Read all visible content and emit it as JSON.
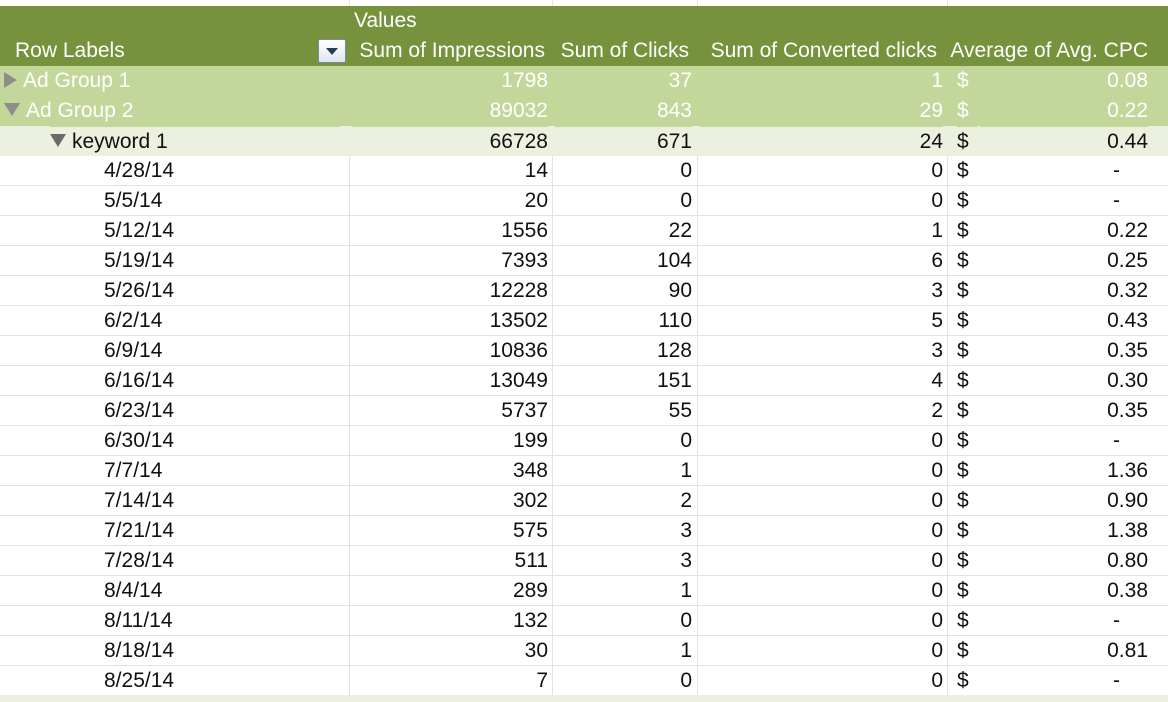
{
  "header": {
    "values_label": "Values",
    "row_labels": "Row Labels",
    "columns": [
      "Sum of Impressions",
      "Sum of Clicks",
      "Sum of Converted clicks",
      "Average of Avg. CPC"
    ]
  },
  "colors": {
    "header": "#76923c",
    "ad_group": "#c4d79b",
    "keyword": "#ebf1de"
  },
  "rows": [
    {
      "type": "group",
      "expand": "collapsed",
      "label": "Ad Group 1",
      "impr": "1798",
      "clicks": "37",
      "conv": "1",
      "cur": "$",
      "cpc": "0.08"
    },
    {
      "type": "group",
      "expand": "expanded",
      "label": "Ad Group 2",
      "impr": "89032",
      "clicks": "843",
      "conv": "29",
      "cur": "$",
      "cpc": "0.22"
    },
    {
      "type": "keyword",
      "expand": "expanded",
      "label": "keyword 1",
      "impr": "66728",
      "clicks": "671",
      "conv": "24",
      "cur": "$",
      "cpc": "0.44"
    },
    {
      "type": "date",
      "label": "4/28/14",
      "impr": "14",
      "clicks": "0",
      "conv": "0",
      "cur": "$",
      "cpc": "-"
    },
    {
      "type": "date",
      "label": "5/5/14",
      "impr": "20",
      "clicks": "0",
      "conv": "0",
      "cur": "$",
      "cpc": "-"
    },
    {
      "type": "date",
      "label": "5/12/14",
      "impr": "1556",
      "clicks": "22",
      "conv": "1",
      "cur": "$",
      "cpc": "0.22"
    },
    {
      "type": "date",
      "label": "5/19/14",
      "impr": "7393",
      "clicks": "104",
      "conv": "6",
      "cur": "$",
      "cpc": "0.25"
    },
    {
      "type": "date",
      "label": "5/26/14",
      "impr": "12228",
      "clicks": "90",
      "conv": "3",
      "cur": "$",
      "cpc": "0.32"
    },
    {
      "type": "date",
      "label": "6/2/14",
      "impr": "13502",
      "clicks": "110",
      "conv": "5",
      "cur": "$",
      "cpc": "0.43"
    },
    {
      "type": "date",
      "label": "6/9/14",
      "impr": "10836",
      "clicks": "128",
      "conv": "3",
      "cur": "$",
      "cpc": "0.35"
    },
    {
      "type": "date",
      "label": "6/16/14",
      "impr": "13049",
      "clicks": "151",
      "conv": "4",
      "cur": "$",
      "cpc": "0.30"
    },
    {
      "type": "date",
      "label": "6/23/14",
      "impr": "5737",
      "clicks": "55",
      "conv": "2",
      "cur": "$",
      "cpc": "0.35"
    },
    {
      "type": "date",
      "label": "6/30/14",
      "impr": "199",
      "clicks": "0",
      "conv": "0",
      "cur": "$",
      "cpc": "-"
    },
    {
      "type": "date",
      "label": "7/7/14",
      "impr": "348",
      "clicks": "1",
      "conv": "0",
      "cur": "$",
      "cpc": "1.36"
    },
    {
      "type": "date",
      "label": "7/14/14",
      "impr": "302",
      "clicks": "2",
      "conv": "0",
      "cur": "$",
      "cpc": "0.90"
    },
    {
      "type": "date",
      "label": "7/21/14",
      "impr": "575",
      "clicks": "3",
      "conv": "0",
      "cur": "$",
      "cpc": "1.38"
    },
    {
      "type": "date",
      "label": "7/28/14",
      "impr": "511",
      "clicks": "3",
      "conv": "0",
      "cur": "$",
      "cpc": "0.80"
    },
    {
      "type": "date",
      "label": "8/4/14",
      "impr": "289",
      "clicks": "1",
      "conv": "0",
      "cur": "$",
      "cpc": "0.38"
    },
    {
      "type": "date",
      "label": "8/11/14",
      "impr": "132",
      "clicks": "0",
      "conv": "0",
      "cur": "$",
      "cpc": "-"
    },
    {
      "type": "date",
      "label": "8/18/14",
      "impr": "30",
      "clicks": "1",
      "conv": "0",
      "cur": "$",
      "cpc": "0.81"
    },
    {
      "type": "date",
      "label": "8/25/14",
      "impr": "7",
      "clicks": "0",
      "conv": "0",
      "cur": "$",
      "cpc": "-"
    }
  ]
}
